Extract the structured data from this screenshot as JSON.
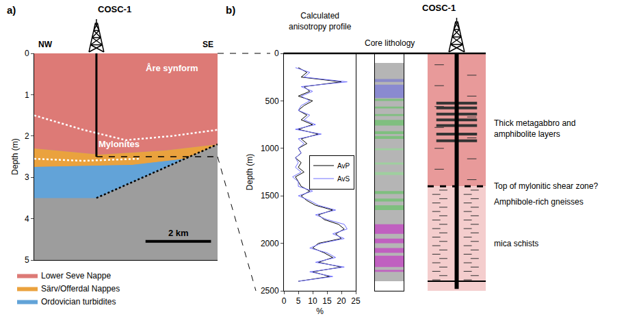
{
  "chart_data": [
    {
      "type": "section",
      "panel": "a)",
      "ylabel": "Depth (m)",
      "xlim": [
        0,
        5.6
      ],
      "ylim": [
        5,
        0
      ],
      "yticks": [
        0,
        1,
        2,
        3,
        4,
        5
      ],
      "tick_labels": "y",
      "grid": false,
      "ends": [
        "NW",
        "SE"
      ],
      "well": {
        "name": "COSC-1",
        "x": 1.9,
        "depth": 2.5
      },
      "legend": "below",
      "regions": [
        {
          "name": "Lower Seve Nappe",
          "color": "#dd7a76",
          "polygon": [
            [
              0,
              0
            ],
            [
              5.6,
              0
            ],
            [
              5.6,
              2.2
            ],
            [
              4,
              2.35
            ],
            [
              2,
              2.45
            ],
            [
              0,
              2.3
            ]
          ]
        },
        {
          "name": "Särv/Offerdal Nappes",
          "color": "#eaa23e",
          "polygon": [
            [
              0,
              2.3
            ],
            [
              2,
              2.45
            ],
            [
              4,
              2.35
            ],
            [
              5.6,
              2.2
            ],
            [
              4.6,
              2.55
            ],
            [
              3,
              2.7
            ],
            [
              0,
              2.75
            ]
          ]
        },
        {
          "name": "Ordovician turbidites",
          "color": "#62a3d8",
          "polygon": [
            [
              0,
              2.75
            ],
            [
              3,
              2.7
            ],
            [
              4.6,
              2.55
            ],
            [
              1.9,
              3.5
            ],
            [
              0,
              3.5
            ]
          ]
        }
      ],
      "boundaries": [
        {
          "color": "#ffffff",
          "line_style": "dot",
          "points": [
            [
              0,
              1.5
            ],
            [
              1.5,
              1.85
            ],
            [
              2.8,
              2.1
            ],
            [
              4.2,
              2.0
            ],
            [
              5.6,
              1.85
            ]
          ]
        },
        {
          "color": "#ffffff",
          "line_style": "dot",
          "points": [
            [
              0,
              2.55
            ],
            [
              1.5,
              2.6
            ],
            [
              3.2,
              2.55
            ]
          ]
        },
        {
          "color": "#000000",
          "line_style": "dot",
          "points": [
            [
              1.9,
              3.5
            ],
            [
              5.6,
              2.2
            ]
          ]
        }
      ],
      "annotations": [
        {
          "text": "Åre synform",
          "x": 4.2,
          "y": 0.35,
          "color": "#ffffff"
        },
        {
          "text": "Mylonites",
          "x": 2.6,
          "y": 2.2,
          "color": "#ffffff"
        }
      ],
      "scale_bar": {
        "length": 2,
        "label": "2 km"
      }
    },
    {
      "type": "line",
      "panel": "b)",
      "title": "Calculated anisotropy profile",
      "xlabel": "%",
      "ylabel": "Depth (m)",
      "xlim": [
        0,
        25
      ],
      "xticks": [
        0,
        5,
        10,
        15,
        20,
        25
      ],
      "ylim": [
        2500,
        0
      ],
      "yticks": [
        0,
        500,
        1000,
        1500,
        2000,
        2500
      ],
      "grid": false,
      "legend": "right",
      "y": [
        150,
        200,
        250,
        300,
        350,
        400,
        450,
        500,
        550,
        600,
        650,
        700,
        750,
        800,
        850,
        900,
        950,
        1000,
        1050,
        1100,
        1150,
        1200,
        1250,
        1300,
        1350,
        1400,
        1450,
        1500,
        1550,
        1600,
        1650,
        1700,
        1750,
        1800,
        1850,
        1900,
        1950,
        2000,
        2050,
        2100,
        2150,
        2200,
        2250,
        2300,
        2350,
        2400
      ],
      "series": [
        {
          "name": "AvP",
          "color": "#000000",
          "values": [
            5,
            8,
            6,
            20,
            7,
            9,
            5,
            10,
            7,
            5,
            8,
            6,
            10,
            5,
            12,
            6,
            8,
            5,
            6,
            4,
            6,
            5,
            7,
            4,
            5,
            6,
            9,
            6,
            8,
            11,
            17,
            12,
            14,
            19,
            21,
            18,
            20,
            12,
            10,
            14,
            17,
            12,
            20,
            10,
            16,
            5
          ]
        },
        {
          "name": "AvS",
          "color": "#7070ff",
          "values": [
            4,
            9,
            7,
            22,
            6,
            10,
            6,
            9,
            6,
            5,
            9,
            7,
            11,
            4,
            13,
            5,
            7,
            5,
            6,
            4,
            5,
            4,
            6,
            3,
            5,
            5,
            10,
            5,
            9,
            12,
            18,
            11,
            15,
            21,
            22,
            17,
            21,
            13,
            9,
            15,
            18,
            11,
            21,
            9,
            17,
            5
          ]
        }
      ]
    },
    {
      "type": "column",
      "title": "Core lithology",
      "ylim": [
        2500,
        0
      ],
      "tick_labels": false,
      "intervals": [
        {
          "top": 100,
          "bottom": 2400,
          "color": "#b5b5b5"
        },
        {
          "top": 270,
          "bottom": 300,
          "color": "#8a8ac8"
        },
        {
          "top": 330,
          "bottom": 470,
          "color": "#8a8ad0"
        },
        {
          "top": 480,
          "bottom": 500,
          "color": "#7fbf7f"
        },
        {
          "top": 560,
          "bottom": 580,
          "color": "#7fbf7f"
        },
        {
          "top": 640,
          "bottom": 660,
          "color": "#7fbf7f"
        },
        {
          "top": 700,
          "bottom": 760,
          "color": "#7fbf7f"
        },
        {
          "top": 820,
          "bottom": 850,
          "color": "#7fbf7f"
        },
        {
          "top": 870,
          "bottom": 900,
          "color": "#7fbf7f"
        },
        {
          "top": 1000,
          "bottom": 1020,
          "color": "#9fcf9f"
        },
        {
          "top": 1150,
          "bottom": 1170,
          "color": "#9fcf9f"
        },
        {
          "top": 1250,
          "bottom": 1280,
          "color": "#9fcf9f"
        },
        {
          "top": 1450,
          "bottom": 1480,
          "color": "#7fbf7f"
        },
        {
          "top": 1530,
          "bottom": 1560,
          "color": "#7fbf7f"
        },
        {
          "top": 1600,
          "bottom": 1650,
          "color": "#7fbf7f"
        },
        {
          "top": 1800,
          "bottom": 1900,
          "color": "#c060c0"
        },
        {
          "top": 1950,
          "bottom": 2000,
          "color": "#c060c0"
        },
        {
          "top": 2050,
          "bottom": 2100,
          "color": "#c060c0"
        },
        {
          "top": 2130,
          "bottom": 2250,
          "color": "#c060c0"
        },
        {
          "top": 2280,
          "bottom": 2300,
          "color": "#c060c0"
        }
      ]
    },
    {
      "type": "diagram",
      "well": "COSC-1",
      "ylim": [
        2500,
        0
      ],
      "tick_labels": false,
      "zones": [
        {
          "top": 0,
          "bottom": 1400,
          "color": "#e89a9a"
        },
        {
          "top": 1400,
          "bottom": 2500,
          "color": "#f4cdcd"
        }
      ],
      "borehole_depth": 2480,
      "layers": [
        525,
        575,
        640,
        700,
        760,
        850,
        920
      ],
      "shear_zone_top": 1400,
      "base": 2400,
      "labels": [
        {
          "text": "Thick metagabbro and amphibolite layers",
          "depth": 790
        },
        {
          "text": "Top of mylonitic shear zone?",
          "depth": 1400
        },
        {
          "text": "Amphibole-rich gneisses",
          "depth": 1565
        },
        {
          "text": "mica schists",
          "depth": 2000
        }
      ]
    }
  ]
}
